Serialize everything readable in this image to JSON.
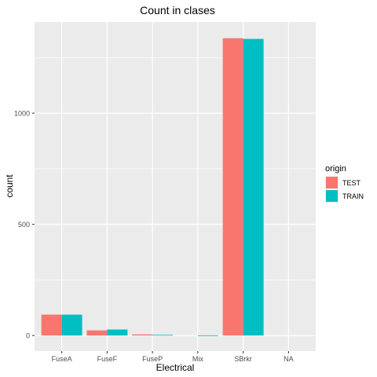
{
  "chart_data": {
    "type": "bar",
    "title": "Count in clases",
    "xlabel": "Electrical",
    "ylabel": "count",
    "categories": [
      "FuseA",
      "FuseF",
      "FuseP",
      "Mix",
      "SBrkr",
      "NA"
    ],
    "series": [
      {
        "name": "TEST",
        "color": "#F8766D",
        "values": [
          94,
          23,
          5,
          0,
          1337,
          0
        ]
      },
      {
        "name": "TRAIN",
        "color": "#00BFC4",
        "values": [
          94,
          27,
          3,
          1,
          1334,
          0
        ]
      }
    ],
    "yticks": [
      0,
      500,
      1000
    ],
    "ylim": [
      -70,
      1410
    ],
    "legend": {
      "title": "origin",
      "position": "right"
    },
    "grid": true,
    "panel_color": "#EBEBEB"
  }
}
